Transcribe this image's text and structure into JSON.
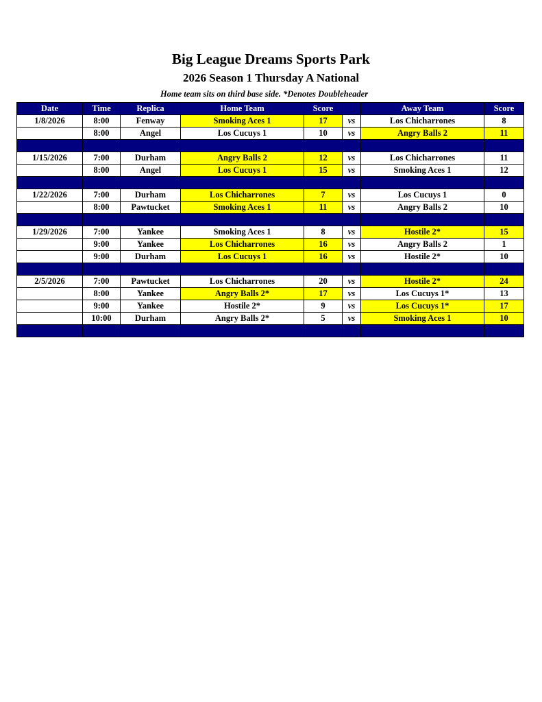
{
  "title": "Big League Dreams Sports Park",
  "subtitle": "2026 Season 1 Thursday A National",
  "note": "Home team sits on third base side.  *Denotes Doubleheader",
  "colors": {
    "header": "#000080",
    "winner_highlight": "#ffff00"
  },
  "columns": [
    "Date",
    "Time",
    "Replica",
    "Home Team",
    "Score",
    "",
    "Away Team",
    "Score"
  ],
  "weeks": [
    {
      "games": [
        {
          "date": "1/8/2026",
          "time": "8:00",
          "replica": "Fenway",
          "home": "Smoking Aces 1",
          "home_score": "17",
          "vs": "vs",
          "away": "Los Chicharrones",
          "away_score": "8",
          "winner": "home"
        },
        {
          "date": "",
          "time": "8:00",
          "replica": "Angel",
          "home": "Los Cucuys 1",
          "home_score": "10",
          "vs": "vs",
          "away": "Angry Balls 2",
          "away_score": "11",
          "winner": "away"
        }
      ]
    },
    {
      "games": [
        {
          "date": "1/15/2026",
          "time": "7:00",
          "replica": "Durham",
          "home": "Angry Balls 2",
          "home_score": "12",
          "vs": "vs",
          "away": "Los Chicharrones",
          "away_score": "11",
          "winner": "home"
        },
        {
          "date": "",
          "time": "8:00",
          "replica": "Angel",
          "home": "Los Cucuys 1",
          "home_score": "15",
          "vs": "vs",
          "away": "Smoking Aces 1",
          "away_score": "12",
          "winner": "home"
        }
      ]
    },
    {
      "games": [
        {
          "date": "1/22/2026",
          "time": "7:00",
          "replica": "Durham",
          "home": "Los Chicharrones",
          "home_score": "7",
          "vs": "vs",
          "away": "Los Cucuys 1",
          "away_score": "0",
          "winner": "home"
        },
        {
          "date": "",
          "time": "8:00",
          "replica": "Pawtucket",
          "home": "Smoking Aces 1",
          "home_score": "11",
          "vs": "vs",
          "away": "Angry Balls 2",
          "away_score": "10",
          "winner": "home"
        }
      ]
    },
    {
      "games": [
        {
          "date": "1/29/2026",
          "time": "7:00",
          "replica": "Yankee",
          "home": "Smoking Aces 1",
          "home_score": "8",
          "vs": "vs",
          "away": "Hostile 2*",
          "away_score": "15",
          "winner": "away"
        },
        {
          "date": "",
          "time": "9:00",
          "replica": "Yankee",
          "home": "Los Chicharrones",
          "home_score": "16",
          "vs": "vs",
          "away": "Angry Balls 2",
          "away_score": "1",
          "winner": "home"
        },
        {
          "date": "",
          "time": "9:00",
          "replica": "Durham",
          "home": "Los Cucuys 1",
          "home_score": "16",
          "vs": "vs",
          "away": "Hostile 2*",
          "away_score": "10",
          "winner": "home"
        }
      ]
    },
    {
      "games": [
        {
          "date": "2/5/2026",
          "time": "7:00",
          "replica": "Pawtucket",
          "home": "Los Chicharrones",
          "home_score": "20",
          "vs": "vs",
          "away": "Hostile 2*",
          "away_score": "24",
          "winner": "away"
        },
        {
          "date": "",
          "time": "8:00",
          "replica": "Yankee",
          "home": "Angry Balls 2*",
          "home_score": "17",
          "vs": "vs",
          "away": "Los Cucuys 1*",
          "away_score": "13",
          "winner": "home"
        },
        {
          "date": "",
          "time": "9:00",
          "replica": "Yankee",
          "home": "Hostile 2*",
          "home_score": "9",
          "vs": "vs",
          "away": "Los Cucuys 1*",
          "away_score": "17",
          "winner": "away"
        },
        {
          "date": "",
          "time": "10:00",
          "replica": "Durham",
          "home": "Angry Balls 2*",
          "home_score": "5",
          "vs": "vs",
          "away": "Smoking Aces 1",
          "away_score": "10",
          "winner": "away"
        }
      ]
    }
  ]
}
